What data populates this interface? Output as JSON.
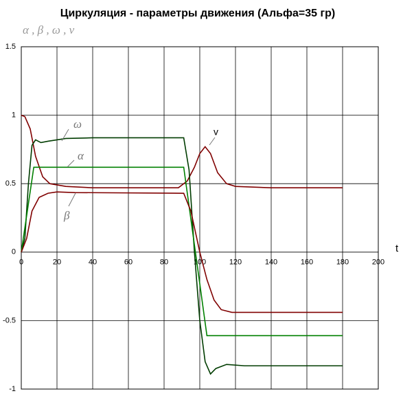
{
  "chart_data": {
    "type": "line",
    "title": "Циркуляция - параметры движения (Альфа=35 гр)",
    "y_label": "α , β , ω , v",
    "x_label": "t",
    "xlim": [
      0,
      200
    ],
    "xticks": [
      0,
      20,
      40,
      60,
      80,
      100,
      120,
      140,
      160,
      180,
      200
    ],
    "ylim": [
      -1,
      1.5
    ],
    "yticks": [
      1.5,
      1,
      0.5,
      0,
      -0.5,
      -1
    ],
    "grid": true,
    "series": [
      {
        "name": "v",
        "color": "#800000",
        "x": [
          0,
          2,
          5,
          8,
          12,
          16,
          25,
          40,
          60,
          88,
          93,
          97,
          100,
          103,
          106,
          110,
          115,
          120,
          140,
          180
        ],
        "values": [
          1,
          0.99,
          0.9,
          0.7,
          0.55,
          0.5,
          0.48,
          0.47,
          0.47,
          0.47,
          0.52,
          0.62,
          0.72,
          0.77,
          0.72,
          0.58,
          0.5,
          0.48,
          0.47,
          0.47
        ]
      },
      {
        "name": "ω",
        "color": "#003c00",
        "x": [
          0,
          2,
          4,
          6,
          8,
          11,
          15,
          25,
          40,
          91,
          94,
          97,
          100,
          103,
          106,
          109,
          115,
          125,
          180
        ],
        "values": [
          0,
          0.1,
          0.5,
          0.78,
          0.82,
          0.8,
          0.81,
          0.83,
          0.835,
          0.835,
          0.6,
          0,
          -0.5,
          -0.8,
          -0.89,
          -0.85,
          -0.82,
          -0.83,
          -0.83
        ]
      },
      {
        "name": "α",
        "color": "#008000",
        "x": [
          0,
          7,
          91,
          104,
          180
        ],
        "values": [
          0,
          0.62,
          0.62,
          -0.61,
          -0.61
        ]
      },
      {
        "name": "β",
        "color": "#800000",
        "x": [
          0,
          3,
          6,
          10,
          15,
          20,
          30,
          91,
          95,
          100,
          104,
          108,
          112,
          118,
          180
        ],
        "values": [
          0,
          0.1,
          0.3,
          0.4,
          0.43,
          0.44,
          0.435,
          0.43,
          0.3,
          0,
          -0.2,
          -0.35,
          -0.42,
          -0.44,
          -0.44
        ]
      }
    ]
  }
}
